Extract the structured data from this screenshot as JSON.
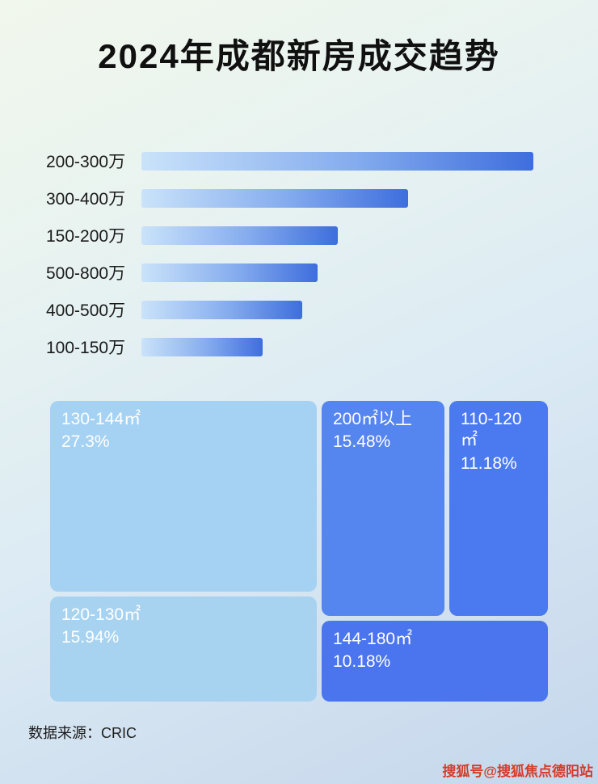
{
  "title": "2024年成都新房成交趋势",
  "footer": {
    "source_label": "数据来源：CRIC"
  },
  "watermark": "搜狐号@搜狐焦点德阳站",
  "colors": {
    "bar_gradient_start": "#cae3fa",
    "bar_gradient_end": "#3e6edd",
    "background_top": "#f1f7ec",
    "background_bottom": "#c4d7ec",
    "watermark_red": "#d53b2a",
    "treemap_light_blue": "#a5d2f3",
    "treemap_deep_blue": "#4a75ee"
  },
  "chart_data": [
    {
      "type": "bar",
      "title": "2024年成都新房成交趋势",
      "orientation": "horizontal",
      "categories": [
        "200-300万",
        "300-400万",
        "150-200万",
        "500-800万",
        "400-500万",
        "100-150万"
      ],
      "values": [
        100,
        68,
        50,
        45,
        41,
        31
      ],
      "note": "no numeric axis shown; values are estimated relative bar lengths as % of the longest bar",
      "xlabel": "",
      "ylabel": "",
      "grid": false,
      "legend": false
    },
    {
      "type": "treemap",
      "items": [
        {
          "label": "130-144㎡",
          "value": 27.3,
          "display": "27.3%",
          "color": "#a5d2f3"
        },
        {
          "label": "200㎡以上",
          "value": 15.48,
          "display": "15.48%",
          "color": "#5585ef"
        },
        {
          "label": "110-120㎡",
          "value": 11.18,
          "display": "11.18%",
          "color": "#4b7af0"
        },
        {
          "label": "120-130㎡",
          "value": 15.94,
          "display": "15.94%",
          "color": "#a8d3f0"
        },
        {
          "label": "144-180㎡",
          "value": 10.18,
          "display": "10.18%",
          "color": "#4a75ee"
        }
      ]
    }
  ]
}
